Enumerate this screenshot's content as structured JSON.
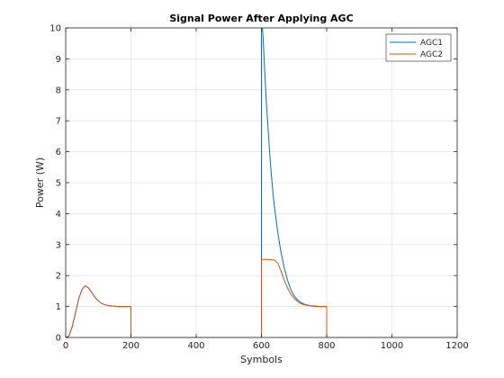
{
  "chart_data": {
    "type": "line",
    "title": "Signal Power After Applying AGC",
    "xlabel": "Symbols",
    "ylabel": "Power (W)",
    "xlim": [
      0,
      1200
    ],
    "ylim": [
      0,
      10
    ],
    "xticks": [
      0,
      200,
      400,
      600,
      800,
      1000,
      1200
    ],
    "yticks": [
      0,
      1,
      2,
      3,
      4,
      5,
      6,
      7,
      8,
      9,
      10
    ],
    "xtick_labels": [
      "0",
      "200",
      "400",
      "600",
      "800",
      "1000",
      "1200"
    ],
    "ytick_labels": [
      "0",
      "1",
      "2",
      "3",
      "4",
      "5",
      "6",
      "7",
      "8",
      "9",
      "10"
    ],
    "grid": true,
    "legend_position": "top-right",
    "series": [
      {
        "name": "AGC1",
        "color": "#0072BD",
        "x": [
          0,
          10,
          20,
          30,
          40,
          50,
          60,
          70,
          80,
          90,
          100,
          110,
          120,
          130,
          140,
          150,
          160,
          170,
          180,
          190,
          200,
          200,
          300,
          400,
          500,
          599,
          600,
          600,
          605,
          610,
          615,
          620,
          625,
          630,
          635,
          640,
          645,
          650,
          660,
          670,
          680,
          690,
          700,
          710,
          720,
          730,
          740,
          750,
          760,
          770,
          780,
          790,
          800,
          800,
          900,
          1000,
          1100,
          1200
        ],
        "y": [
          0,
          0.05,
          0.35,
          0.8,
          1.25,
          1.55,
          1.67,
          1.6,
          1.45,
          1.3,
          1.18,
          1.1,
          1.06,
          1.03,
          1.02,
          1.01,
          1.0,
          1.0,
          1.0,
          1.0,
          1.0,
          0,
          0,
          0,
          0,
          0,
          0,
          10.5,
          9.7,
          8.6,
          7.6,
          6.8,
          6.0,
          5.3,
          4.7,
          4.2,
          3.8,
          3.4,
          2.75,
          2.25,
          1.85,
          1.55,
          1.35,
          1.22,
          1.14,
          1.08,
          1.05,
          1.03,
          1.02,
          1.01,
          1.0,
          1.0,
          1.0,
          0,
          0,
          0,
          0,
          0
        ]
      },
      {
        "name": "AGC2",
        "color": "#D95319",
        "x": [
          0,
          10,
          20,
          30,
          40,
          50,
          60,
          70,
          80,
          90,
          100,
          110,
          120,
          130,
          140,
          150,
          160,
          170,
          180,
          190,
          200,
          200,
          300,
          400,
          500,
          599,
          600,
          600,
          620,
          640,
          650,
          660,
          670,
          680,
          690,
          700,
          710,
          720,
          730,
          740,
          750,
          760,
          770,
          780,
          790,
          800,
          800,
          900,
          1000,
          1100,
          1200
        ],
        "y": [
          0,
          0.05,
          0.35,
          0.8,
          1.25,
          1.55,
          1.67,
          1.6,
          1.45,
          1.3,
          1.18,
          1.1,
          1.06,
          1.03,
          1.02,
          1.01,
          1.0,
          1.0,
          1.0,
          1.0,
          1.0,
          0,
          0,
          0,
          0,
          0,
          0,
          2.52,
          2.52,
          2.5,
          2.4,
          2.15,
          1.85,
          1.6,
          1.4,
          1.27,
          1.17,
          1.1,
          1.06,
          1.04,
          1.02,
          1.01,
          1.0,
          1.0,
          1.0,
          1.0,
          0,
          0,
          0,
          0,
          0
        ]
      }
    ]
  }
}
